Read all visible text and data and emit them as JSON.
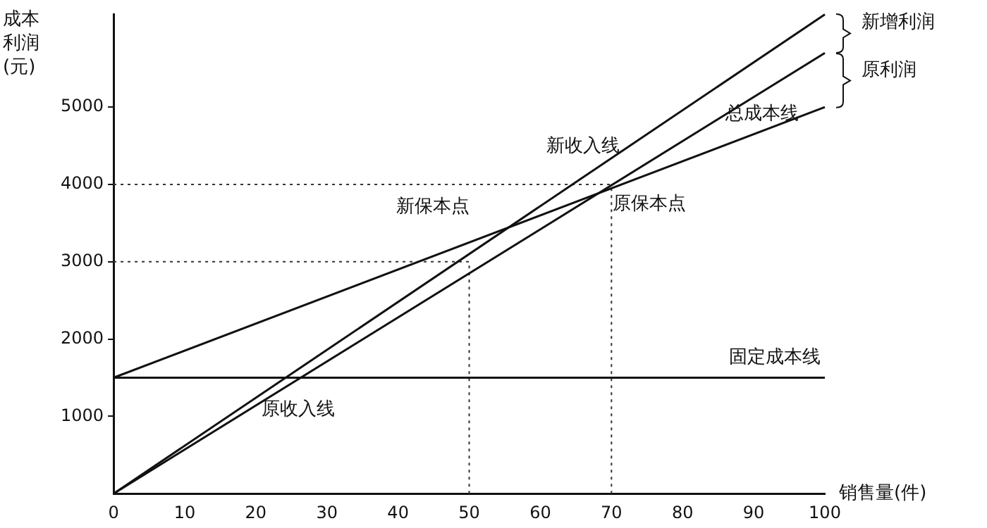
{
  "chart_data": {
    "type": "line",
    "xlabel": "销售量(件)",
    "ylabel": "成本利润(元)",
    "xlim": [
      0,
      100
    ],
    "xticks": [
      0,
      10,
      20,
      30,
      40,
      50,
      60,
      70,
      80,
      90,
      100
    ],
    "ylim": [
      0,
      6200
    ],
    "yticks": [
      1000,
      2000,
      3000,
      4000,
      5000
    ],
    "x": [
      0,
      100
    ],
    "series": [
      {
        "name": "新收入线",
        "color": "#111111",
        "values": [
          0,
          6200
        ]
      },
      {
        "name": "原收入线",
        "color": "#111111",
        "values": [
          0,
          5700
        ]
      },
      {
        "name": "总成本线",
        "color": "#111111",
        "values": [
          1500,
          5000
        ]
      },
      {
        "name": "固定成本线",
        "color": "#111111",
        "values": [
          1500,
          1500
        ]
      }
    ],
    "ref_lines": [
      {
        "axis": "x",
        "value": 50,
        "line_style": "dotted",
        "color": "#333333"
      },
      {
        "axis": "y",
        "value": 3000,
        "line_style": "dotted",
        "color": "#333333"
      },
      {
        "axis": "x",
        "value": 70,
        "line_style": "dotted",
        "color": "#333333"
      },
      {
        "axis": "y",
        "value": 4000,
        "line_style": "dotted",
        "color": "#333333"
      }
    ],
    "annotations": [
      {
        "text": "新保本点",
        "x": 55.6,
        "y": 3450
      },
      {
        "text": "原保本点",
        "x": 69,
        "y": 4000
      },
      "新增利润",
      "原利润"
    ],
    "grid": false,
    "legend": false,
    "marker": "none",
    "line_style": "solid"
  }
}
